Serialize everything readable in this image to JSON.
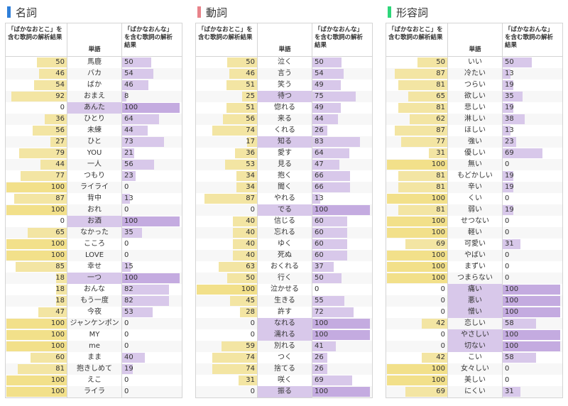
{
  "colors": {
    "noun_marker": "#2f7fd9",
    "verb_marker": "#e8838a",
    "adj_marker": "#2ed67a",
    "bar_otoko": "#f3e5a3",
    "bar_onna": "#d8c8ea"
  },
  "chart_data": [
    {
      "type": "bar",
      "title": "名詞",
      "col_otoko_label": "「ばかなおとこ」を含む歌詞の解析結果",
      "col_word_label": "単語",
      "col_onna_label": "「ばかなおんな」を含む歌詞の解析結果",
      "categories": [
        "馬鹿",
        "バカ",
        "ばか",
        "おまえ",
        "あんた",
        "ひとり",
        "未練",
        "ひと",
        "YOU",
        "一人",
        "つもり",
        "ライライ",
        "背中",
        "おれ",
        "お酒",
        "なかった",
        "こころ",
        "LOVE",
        "幸せ",
        "一つ",
        "おんな",
        "もう一度",
        "今夜",
        "ジャンケンポン",
        "MY",
        "me",
        "まま",
        "抱きしめて",
        "えこ",
        "ライラ"
      ],
      "otoko": [
        50,
        46,
        54,
        92,
        0,
        36,
        56,
        27,
        79,
        44,
        77,
        100,
        87,
        100,
        0,
        65,
        100,
        100,
        85,
        18,
        18,
        18,
        47,
        100,
        100,
        100,
        60,
        81,
        100,
        100
      ],
      "onna": [
        50,
        54,
        46,
        8,
        100,
        64,
        44,
        73,
        21,
        56,
        23,
        0,
        13,
        0,
        100,
        35,
        0,
        0,
        15,
        100,
        82,
        82,
        53,
        0,
        0,
        0,
        40,
        19,
        0,
        0
      ],
      "highlight": [
        4,
        14,
        19
      ]
    },
    {
      "type": "bar",
      "title": "動詞",
      "col_otoko_label": "「ばかなおとこ」を含む歌詞の解析結果",
      "col_word_label": "単語",
      "col_onna_label": "「ばかなおんな」を含む歌詞の解析結果",
      "categories": [
        "泣く",
        "言う",
        "笑う",
        "待つ",
        "惚れる",
        "来る",
        "くれる",
        "知る",
        "愛す",
        "見る",
        "抱く",
        "聞く",
        "やれる",
        "でる",
        "信じる",
        "忘れる",
        "ゆく",
        "死ぬ",
        "おくれる",
        "行く",
        "泣かせる",
        "生きる",
        "許す",
        "なれる",
        "濡れる",
        "別れる",
        "つく",
        "捨てる",
        "咲く",
        "振る"
      ],
      "otoko": [
        50,
        46,
        51,
        25,
        51,
        56,
        74,
        17,
        36,
        53,
        34,
        34,
        87,
        0,
        40,
        40,
        40,
        40,
        63,
        50,
        100,
        45,
        28,
        0,
        0,
        59,
        74,
        74,
        31,
        0
      ],
      "onna": [
        50,
        54,
        49,
        75,
        49,
        44,
        26,
        83,
        64,
        47,
        66,
        66,
        13,
        100,
        60,
        60,
        60,
        60,
        37,
        50,
        0,
        55,
        72,
        100,
        100,
        41,
        26,
        26,
        69,
        100
      ],
      "highlight": [
        3,
        7,
        13,
        23,
        24,
        29
      ]
    },
    {
      "type": "bar",
      "title": "形容詞",
      "col_otoko_label": "「ばかなおとこ」を含む歌詞の解析結果",
      "col_word_label": "単語",
      "col_onna_label": "「ばかなおんな」を含む歌詞の解析結果",
      "categories": [
        "いい",
        "冷たい",
        "つらい",
        "欲しい",
        "悲しい",
        "淋しい",
        "ほしい",
        "強い",
        "優しい",
        "無い",
        "もどかしい",
        "辛い",
        "くい",
        "弱い",
        "せつない",
        "軽い",
        "可愛い",
        "やばい",
        "まずい",
        "つまらない",
        "痛い",
        "悪い",
        "憎い",
        "恋しい",
        "やさしい",
        "切ない",
        "こい",
        "女々しい",
        "美しい",
        "にくい"
      ],
      "otoko": [
        50,
        87,
        81,
        65,
        81,
        62,
        87,
        77,
        31,
        100,
        81,
        81,
        100,
        81,
        100,
        100,
        69,
        100,
        100,
        100,
        0,
        0,
        0,
        42,
        0,
        0,
        42,
        100,
        100,
        69
      ],
      "onna": [
        50,
        13,
        19,
        35,
        19,
        38,
        13,
        23,
        69,
        0,
        19,
        19,
        0,
        19,
        0,
        0,
        31,
        0,
        0,
        0,
        100,
        100,
        100,
        58,
        100,
        100,
        58,
        0,
        0,
        31
      ],
      "highlight": [
        20,
        21,
        22,
        24,
        25
      ]
    }
  ]
}
